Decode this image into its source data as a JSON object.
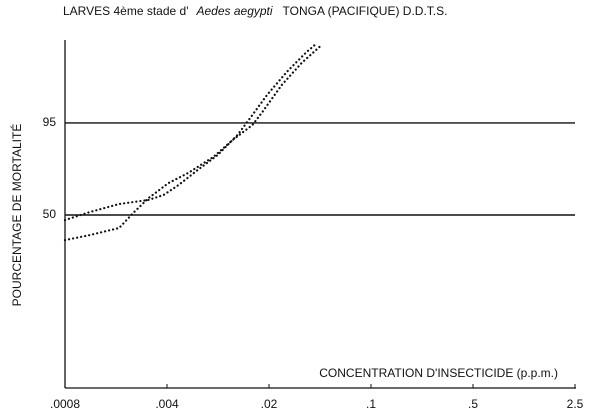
{
  "chart_data": {
    "type": "line",
    "title": "LARVES 4ème stade d'",
    "title_species": "Aedes aegypti",
    "title_suffix": "TONGA (PACIFIQUE) D.D.T.S.",
    "ylabel": "POURCENTAGE DE MORTALITÉ",
    "xlabel": "CONCENTRATION D'INSECTICIDE (p.p.m.)",
    "xscale": "log",
    "yscale": "probit",
    "xlim": [
      0.0008,
      2.5
    ],
    "ylim": [
      0.1,
      99.9
    ],
    "xticks": [
      {
        "value": 0.0008,
        "label": ".0008"
      },
      {
        "value": 0.004,
        "label": ".004"
      },
      {
        "value": 0.02,
        "label": ".02"
      },
      {
        "value": 0.1,
        "label": ".1"
      },
      {
        "value": 0.5,
        "label": ".5"
      },
      2.5
    ],
    "yticks": [
      50,
      95
    ],
    "grid": true,
    "series": [
      {
        "color": "#111111",
        "x": [
          0.0008,
          0.00118,
          0.00188,
          0.003,
          0.0038,
          0.0048,
          0.0065,
          0.0089,
          0.0122,
          0.0154,
          0.0194,
          0.0265,
          0.0362,
          0.0423
        ],
        "values": [
          46.4,
          52.1,
          57.8,
          60.6,
          64.0,
          70.4,
          79.0,
          85.8,
          92.4,
          96.3,
          98.4,
          99.47,
          99.82,
          99.89
        ]
      },
      {
        "color": "#111111",
        "x": [
          0.0008,
          0.00118,
          0.00188,
          0.00238,
          0.003,
          0.0041,
          0.0056,
          0.0083,
          0.0113,
          0.0154,
          0.018,
          0.0245,
          0.0335,
          0.0458
        ],
        "values": [
          32.7,
          36.0,
          40.8,
          52.1,
          62.0,
          71.6,
          77.4,
          85.0,
          91.0,
          94.6,
          96.7,
          99.0,
          99.67,
          99.88
        ]
      }
    ]
  }
}
